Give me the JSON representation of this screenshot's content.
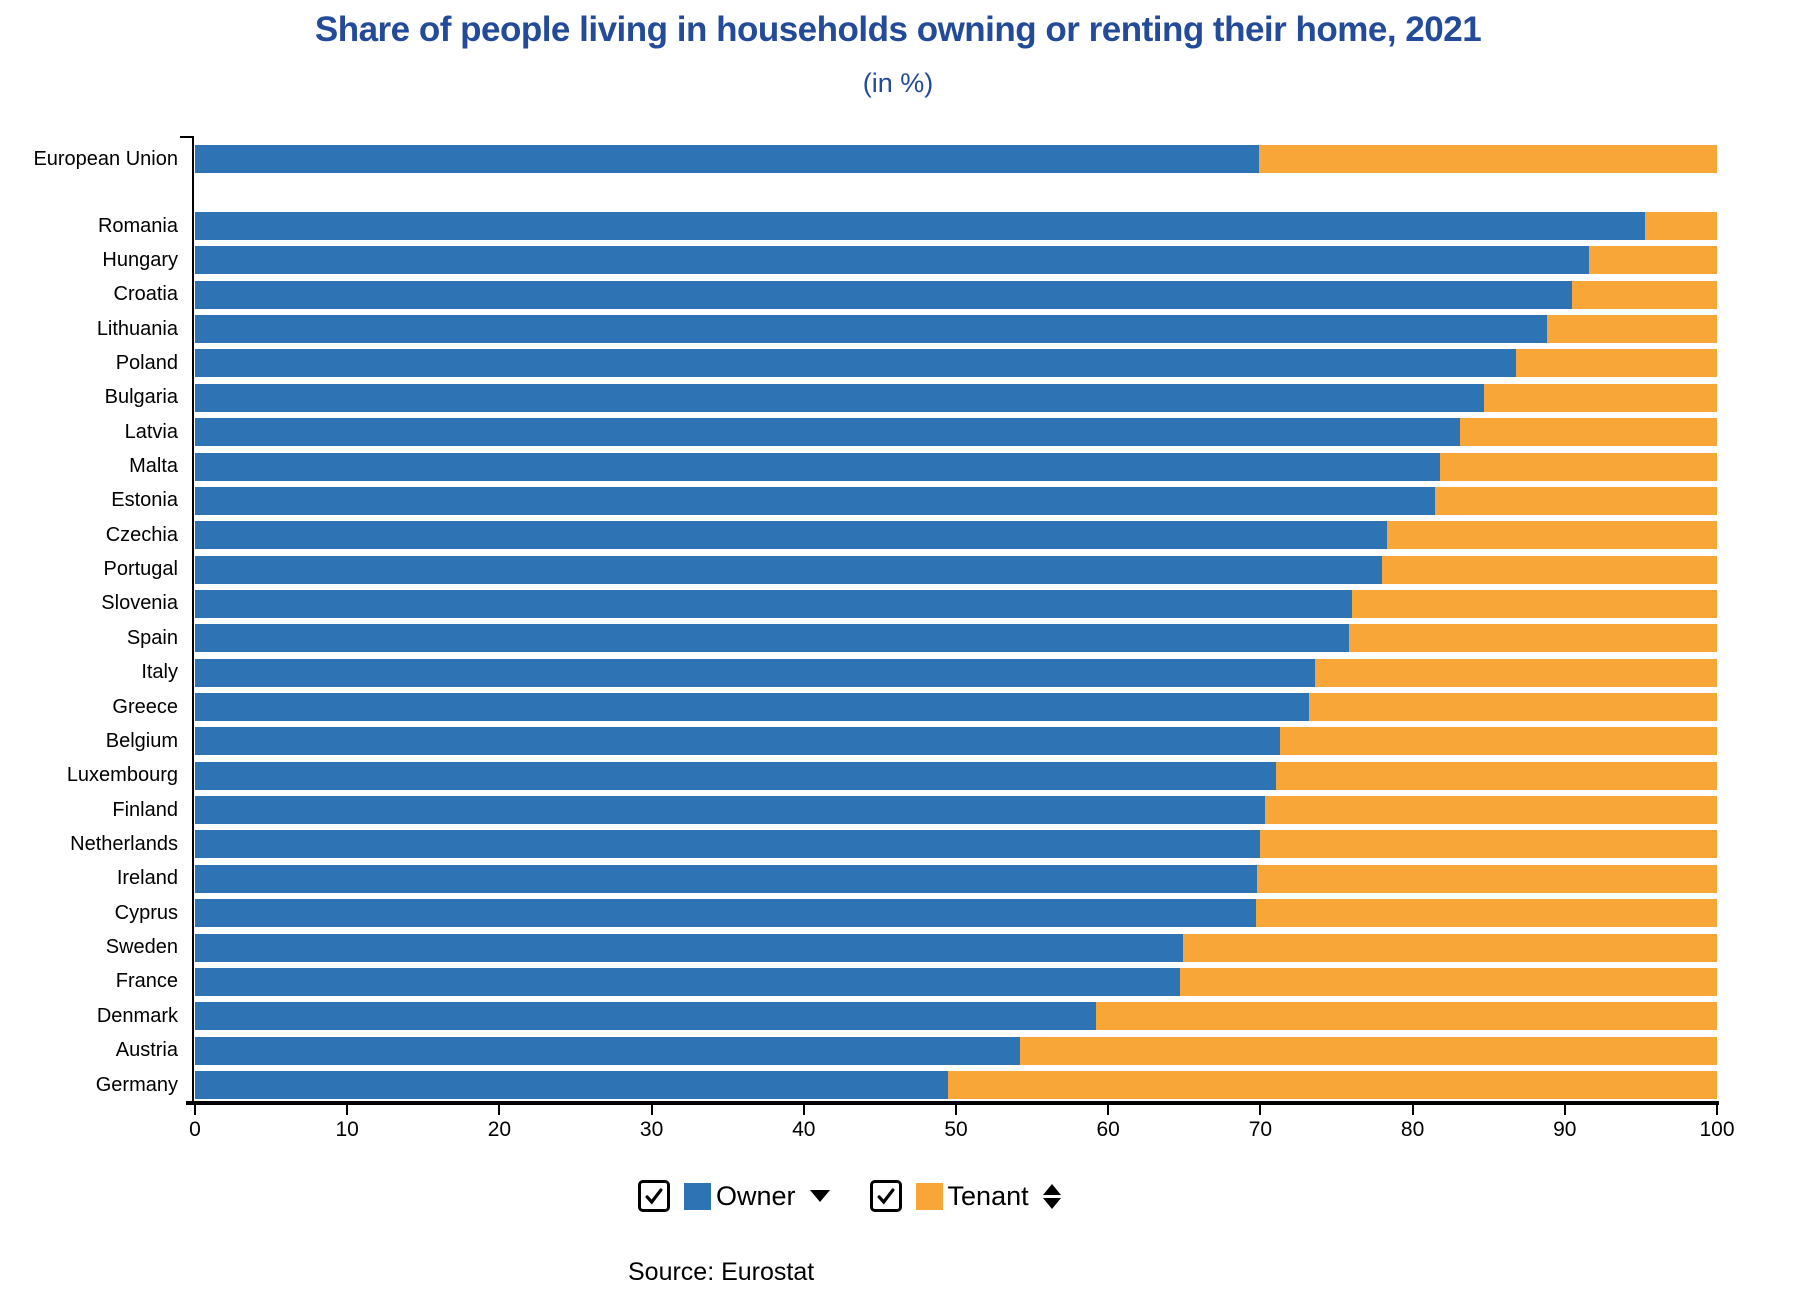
{
  "title": "Share of people living in households owning or renting their home, 2021",
  "subtitle": "(in %)",
  "source": "Source: Eurostat",
  "colors": {
    "owner": "#2e74b5",
    "tenant": "#f7a637",
    "title_text": "#234b99",
    "axis": "#000000"
  },
  "legend": {
    "owner": {
      "label": "Owner",
      "checked": true,
      "sort_indicator": "descending"
    },
    "tenant": {
      "label": "Tenant",
      "checked": true,
      "sort_indicator": "both"
    }
  },
  "chart_data": {
    "type": "bar",
    "orientation": "horizontal",
    "stacked": true,
    "title": "Share of people living in households owning or renting their home, 2021",
    "subtitle": "(in %)",
    "xlabel": "",
    "ylabel": "",
    "xlim": [
      0,
      100
    ],
    "x_ticks": [
      0,
      10,
      20,
      30,
      40,
      50,
      60,
      70,
      80,
      90,
      100
    ],
    "grid": false,
    "legend_position": "bottom",
    "categories": [
      "European Union",
      "Romania",
      "Hungary",
      "Croatia",
      "Lithuania",
      "Poland",
      "Bulgaria",
      "Latvia",
      "Malta",
      "Estonia",
      "Czechia",
      "Portugal",
      "Slovenia",
      "Spain",
      "Italy",
      "Greece",
      "Belgium",
      "Luxembourg",
      "Finland",
      "Netherlands",
      "Ireland",
      "Cyprus",
      "Sweden",
      "France",
      "Denmark",
      "Austria",
      "Germany"
    ],
    "series": [
      {
        "name": "Owner",
        "color": "#2e74b5",
        "values": [
          69.9,
          95.3,
          91.6,
          90.5,
          88.8,
          86.8,
          84.7,
          83.1,
          81.8,
          81.5,
          78.3,
          78.0,
          76.0,
          75.8,
          73.6,
          73.2,
          71.3,
          71.0,
          70.3,
          70.0,
          69.8,
          69.7,
          64.9,
          64.7,
          59.2,
          54.2,
          49.5
        ]
      },
      {
        "name": "Tenant",
        "color": "#f7a637",
        "values": [
          30.1,
          4.7,
          8.4,
          9.5,
          11.2,
          13.2,
          15.3,
          16.9,
          18.2,
          18.5,
          21.7,
          22.0,
          24.0,
          24.2,
          26.4,
          26.8,
          28.7,
          29.0,
          29.7,
          30.0,
          30.2,
          30.3,
          35.1,
          35.3,
          40.8,
          45.8,
          50.5
        ]
      }
    ]
  }
}
